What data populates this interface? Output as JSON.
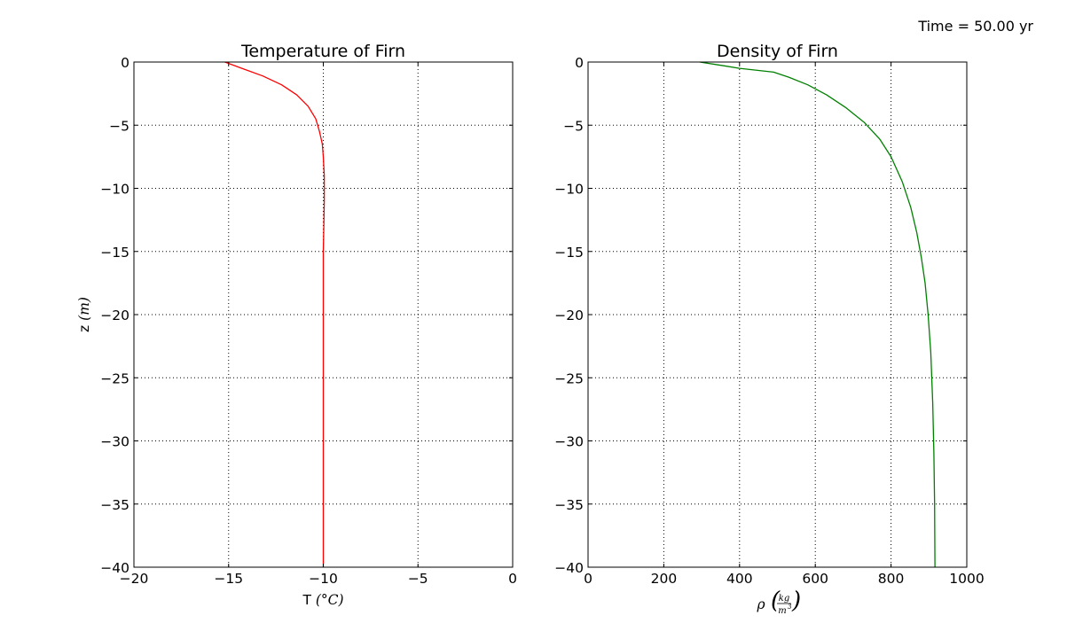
{
  "annotation": "Time = 50.00 yr",
  "chart_data": [
    {
      "type": "line",
      "title": "Temperature of Firn",
      "xlabel": "T (°C)",
      "xlabel_parts": {
        "text": "T ",
        "math": "(°C)"
      },
      "ylabel": "z (m)",
      "ylabel_parts": {
        "text": "z ",
        "math": "(m)"
      },
      "xlim": [
        -20,
        0
      ],
      "ylim": [
        -40,
        0
      ],
      "xticks": [
        -20,
        -15,
        -10,
        -5,
        0
      ],
      "yticks": [
        0,
        -5,
        -10,
        -15,
        -20,
        -25,
        -30,
        -35,
        -40
      ],
      "xtick_labels": [
        "−20",
        "−15",
        "−10",
        "−5",
        "0"
      ],
      "ytick_labels": [
        "0",
        "−5",
        "−10",
        "−15",
        "−20",
        "−25",
        "−30",
        "−35",
        "−40"
      ],
      "grid": true,
      "series": [
        {
          "color": "#ff0000",
          "x": [
            -15.2,
            -14.3,
            -13.2,
            -12.2,
            -11.4,
            -10.8,
            -10.4,
            -10.2,
            -10.05,
            -10.0,
            -9.95,
            -9.95,
            -9.97,
            -10.0,
            -10.0,
            -10.0
          ],
          "y": [
            0,
            -0.5,
            -1.1,
            -1.8,
            -2.6,
            -3.5,
            -4.5,
            -5.5,
            -6.5,
            -7.5,
            -9.0,
            -11.0,
            -13.0,
            -15.0,
            -20.0,
            -40.0
          ]
        }
      ]
    },
    {
      "type": "line",
      "title": "Density of Firn",
      "xlabel": "ρ (kg/m³)",
      "xlabel_parts": {
        "rho": "ρ",
        "num": "kg",
        "den": "m",
        "exp": "3"
      },
      "ylabel": "",
      "xlim": [
        0,
        1000
      ],
      "ylim": [
        -40,
        0
      ],
      "xticks": [
        0,
        200,
        400,
        600,
        800,
        1000
      ],
      "yticks": [
        0,
        -5,
        -10,
        -15,
        -20,
        -25,
        -30,
        -35,
        -40
      ],
      "xtick_labels": [
        "0",
        "200",
        "400",
        "600",
        "800",
        "1000"
      ],
      "ytick_labels": [
        "0",
        "−5",
        "−10",
        "−15",
        "−20",
        "−25",
        "−30",
        "−35",
        "−40"
      ],
      "grid": true,
      "series": [
        {
          "color": "#008000",
          "x": [
            295,
            360,
            400,
            490,
            530,
            580,
            630,
            680,
            730,
            770,
            800,
            830,
            852,
            868,
            880,
            890,
            898,
            905,
            910,
            913,
            915,
            916
          ],
          "y": [
            0,
            -0.3,
            -0.5,
            -0.8,
            -1.2,
            -1.8,
            -2.6,
            -3.6,
            -4.8,
            -6.1,
            -7.5,
            -9.5,
            -11.5,
            -13.5,
            -15.5,
            -17.5,
            -20.0,
            -23.0,
            -27.0,
            -31.0,
            -35.0,
            -40.0
          ]
        }
      ]
    }
  ]
}
